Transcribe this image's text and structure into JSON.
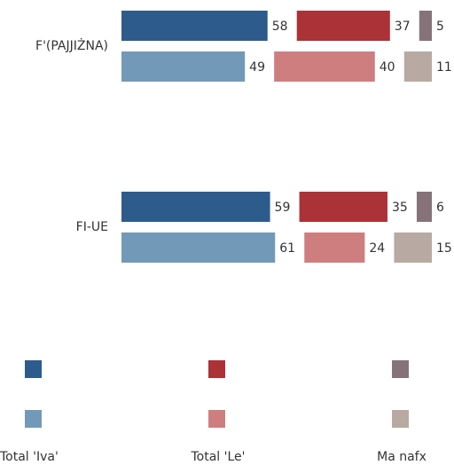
{
  "chart_data": {
    "type": "bar",
    "orientation": "horizontal",
    "categories": [
      "F'(PAJJIŻNA)",
      "FI-UE"
    ],
    "series": [
      {
        "name": "Total 'Iva'",
        "colors": [
          "#2d5b8c",
          "#7399b8"
        ],
        "values": [
          [
            58,
            49
          ],
          [
            59,
            61
          ]
        ]
      },
      {
        "name": "Total 'Le'",
        "colors": [
          "#ab3237",
          "#cf7e80"
        ],
        "values": [
          [
            37,
            40
          ],
          [
            35,
            24
          ]
        ]
      },
      {
        "name": "Ma nafx",
        "colors": [
          "#86737a",
          "#b8aaa2"
        ],
        "values": [
          [
            5,
            11
          ],
          [
            6,
            15
          ]
        ]
      }
    ]
  }
}
